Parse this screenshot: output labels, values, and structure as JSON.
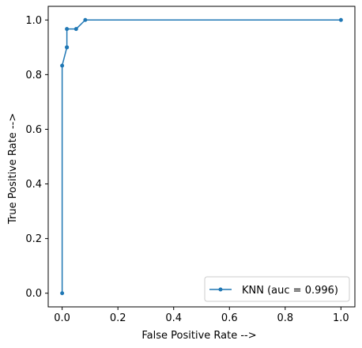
{
  "chart_data": {
    "type": "line",
    "title": "",
    "xlabel": "False Positive Rate -->",
    "ylabel": "True Positive Rate -->",
    "xlim": [
      -0.05,
      1.05
    ],
    "ylim": [
      -0.05,
      1.05
    ],
    "xticks": [
      0.0,
      0.2,
      0.4,
      0.6,
      0.8,
      1.0
    ],
    "yticks": [
      0.0,
      0.2,
      0.4,
      0.6,
      0.8,
      1.0
    ],
    "xtick_labels": [
      "0.0",
      "0.2",
      "0.4",
      "0.6",
      "0.8",
      "1.0"
    ],
    "ytick_labels": [
      "0.0",
      "0.2",
      "0.4",
      "0.6",
      "0.8",
      "1.0"
    ],
    "grid": false,
    "legend_position": "lower-right",
    "series": [
      {
        "name": "KNN (auc = 0.996)",
        "color": "#1f77b4",
        "marker": "dot",
        "x": [
          0.0,
          0.0,
          0.017,
          0.017,
          0.017,
          0.05,
          0.083,
          1.0
        ],
        "y": [
          0.0,
          0.833,
          0.9,
          0.9,
          0.967,
          0.967,
          1.0,
          1.0
        ]
      }
    ]
  }
}
